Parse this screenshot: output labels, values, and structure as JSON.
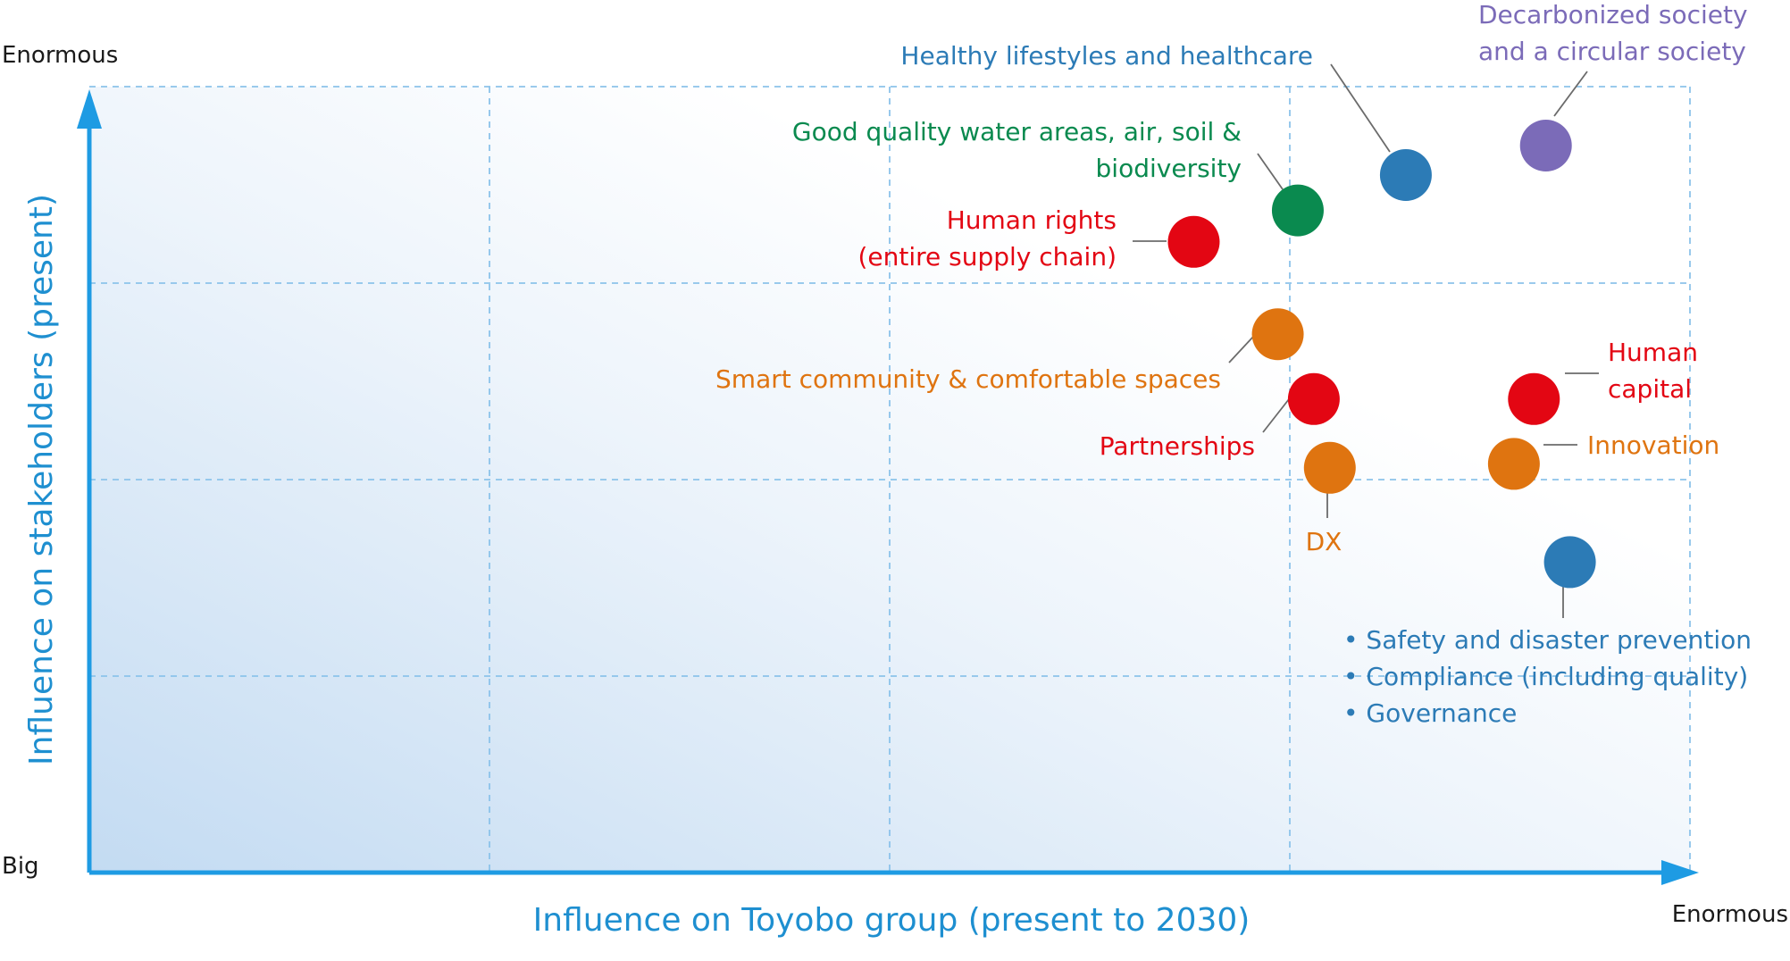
{
  "chart_data": {
    "type": "scatter",
    "xlabel": "Influence on Toyobo group (present to 2030)",
    "ylabel": "Influence on stakeholders (present)",
    "y_top_label": "Enormous",
    "y_bottom_label": "Big",
    "x_right_label": "Enormous",
    "xlim": [
      0,
      4
    ],
    "ylim": [
      0,
      4
    ],
    "grid": true,
    "legend": "none",
    "colors": {
      "blue": "#2c7bb6",
      "purple": "#7b6bb8",
      "green": "#0a8a4f",
      "red": "#e30613",
      "orange": "#df7410",
      "axis": "#1e9be3"
    },
    "points": [
      {
        "name": "Healthy lifestyles and healthcare",
        "lines": [
          "Healthy lifestyles and healthcare"
        ],
        "x": 3.29,
        "y": 3.55,
        "color": "#2c7bb6"
      },
      {
        "name": "Decarbonized society and a circular society",
        "lines": [
          "Decarbonized society",
          "and a circular society"
        ],
        "x": 3.64,
        "y": 3.7,
        "color": "#7b6bb8"
      },
      {
        "name": "Good quality water areas, air, soil & biodiversity",
        "lines": [
          "Good quality water areas, air, soil &",
          "biodiversity"
        ],
        "x": 3.02,
        "y": 3.37,
        "color": "#0a8a4f"
      },
      {
        "name": "Human rights (entire supply chain)",
        "lines": [
          "Human rights",
          "(entire supply chain)"
        ],
        "x": 2.76,
        "y": 3.21,
        "color": "#e30613"
      },
      {
        "name": "Smart community & comfortable spaces",
        "lines": [
          "Smart community & comfortable spaces"
        ],
        "x": 2.97,
        "y": 2.74,
        "color": "#df7410"
      },
      {
        "name": "Partnerships",
        "lines": [
          "Partnerships"
        ],
        "x": 3.06,
        "y": 2.41,
        "color": "#e30613"
      },
      {
        "name": "Human capital",
        "lines": [
          "Human",
          "capital"
        ],
        "x": 3.61,
        "y": 2.41,
        "color": "#e30613"
      },
      {
        "name": "DX",
        "lines": [
          "DX"
        ],
        "x": 3.1,
        "y": 2.06,
        "color": "#df7410"
      },
      {
        "name": "Innovation",
        "lines": [
          "Innovation"
        ],
        "x": 3.56,
        "y": 2.08,
        "color": "#df7410"
      },
      {
        "name": "Safety and disaster prevention; Compliance (including quality); Governance",
        "lines": [
          "• Safety and disaster prevention",
          "• Compliance (including quality)",
          "• Governance"
        ],
        "x": 3.7,
        "y": 1.58,
        "color": "#2c7bb6"
      }
    ]
  }
}
